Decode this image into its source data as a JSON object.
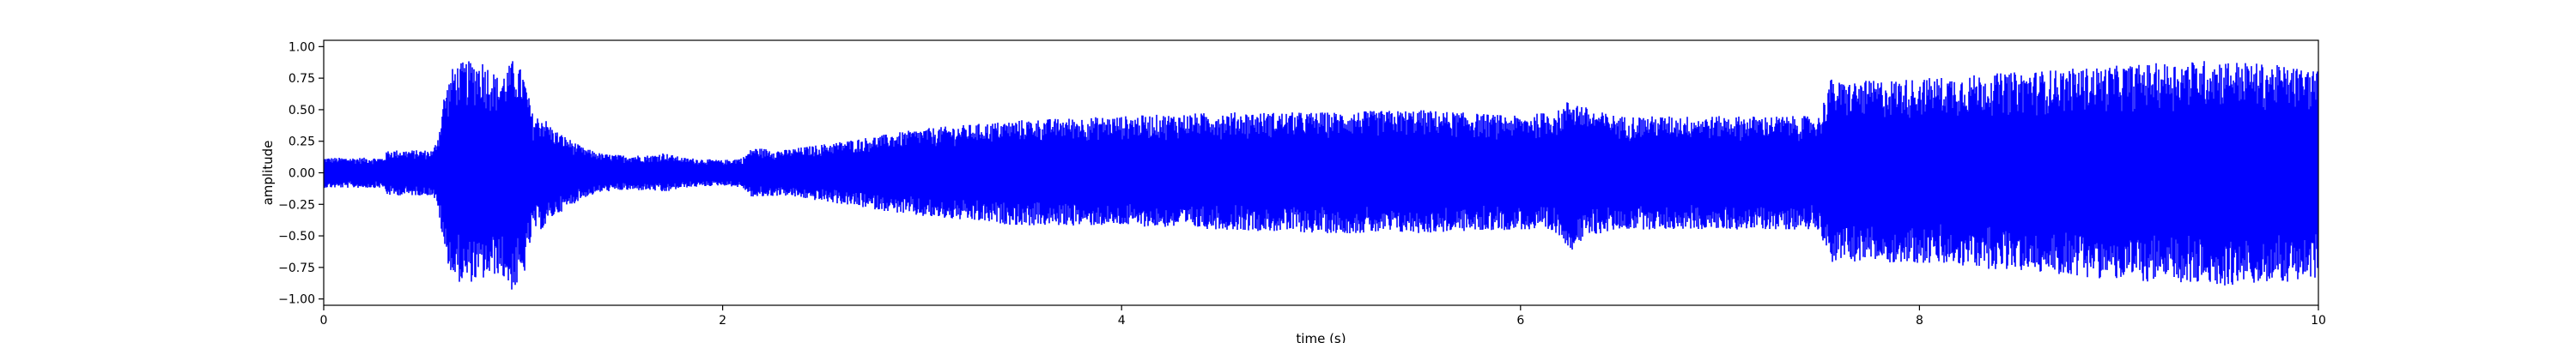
{
  "chart_data": {
    "type": "line",
    "title": "",
    "xlabel": "time (s)",
    "ylabel": "amplitude",
    "xlim": [
      0,
      10
    ],
    "ylim": [
      -1.05,
      1.05
    ],
    "x_ticks": [
      0,
      2,
      4,
      6,
      8,
      10
    ],
    "x_tick_labels": [
      "0",
      "2",
      "4",
      "6",
      "8",
      "10"
    ],
    "y_ticks": [
      1.0,
      0.75,
      0.5,
      0.25,
      0.0,
      -0.25,
      -0.5,
      -0.75,
      -1.0
    ],
    "y_tick_labels": [
      "1.00",
      "0.75",
      "0.50",
      "0.25",
      "0.00",
      "−0.25",
      "−0.50",
      "−0.75",
      "−1.00"
    ],
    "grid": false,
    "legend": "none",
    "series": [
      {
        "color": "#0000ff",
        "envelope": {
          "time": [
            0,
            0.3,
            0.32,
            0.55,
            0.58,
            0.6,
            0.65,
            0.7,
            0.8,
            0.88,
            0.95,
            1.0,
            1.05,
            1.1,
            1.15,
            1.2,
            1.3,
            1.4,
            1.5,
            1.65,
            1.7,
            1.8,
            2.0,
            2.1,
            2.15,
            2.3,
            2.6,
            3.0,
            3.5,
            4.0,
            4.5,
            5.0,
            5.5,
            6.0,
            6.2,
            6.25,
            6.35,
            6.5,
            7.0,
            7.5,
            7.55,
            7.6,
            8.0,
            8.5,
            9.0,
            9.5,
            10.0
          ],
          "upper": [
            0.12,
            0.12,
            0.18,
            0.18,
            0.35,
            0.6,
            0.85,
            0.88,
            0.9,
            0.75,
            0.9,
            0.8,
            0.45,
            0.45,
            0.35,
            0.3,
            0.2,
            0.15,
            0.14,
            0.14,
            0.16,
            0.12,
            0.1,
            0.12,
            0.2,
            0.18,
            0.25,
            0.35,
            0.42,
            0.45,
            0.48,
            0.48,
            0.5,
            0.45,
            0.5,
            0.6,
            0.5,
            0.45,
            0.45,
            0.45,
            0.75,
            0.72,
            0.75,
            0.8,
            0.85,
            0.9,
            0.82
          ],
          "lower": [
            -0.12,
            -0.12,
            -0.18,
            -0.18,
            -0.35,
            -0.6,
            -0.85,
            -0.88,
            -0.85,
            -0.8,
            -0.95,
            -0.85,
            -0.45,
            -0.45,
            -0.35,
            -0.3,
            -0.2,
            -0.15,
            -0.14,
            -0.14,
            -0.16,
            -0.12,
            -0.1,
            -0.12,
            -0.2,
            -0.18,
            -0.25,
            -0.35,
            -0.42,
            -0.42,
            -0.45,
            -0.48,
            -0.48,
            -0.45,
            -0.5,
            -0.62,
            -0.5,
            -0.45,
            -0.45,
            -0.45,
            -0.72,
            -0.7,
            -0.72,
            -0.78,
            -0.85,
            -0.9,
            -0.85
          ]
        }
      }
    ]
  }
}
